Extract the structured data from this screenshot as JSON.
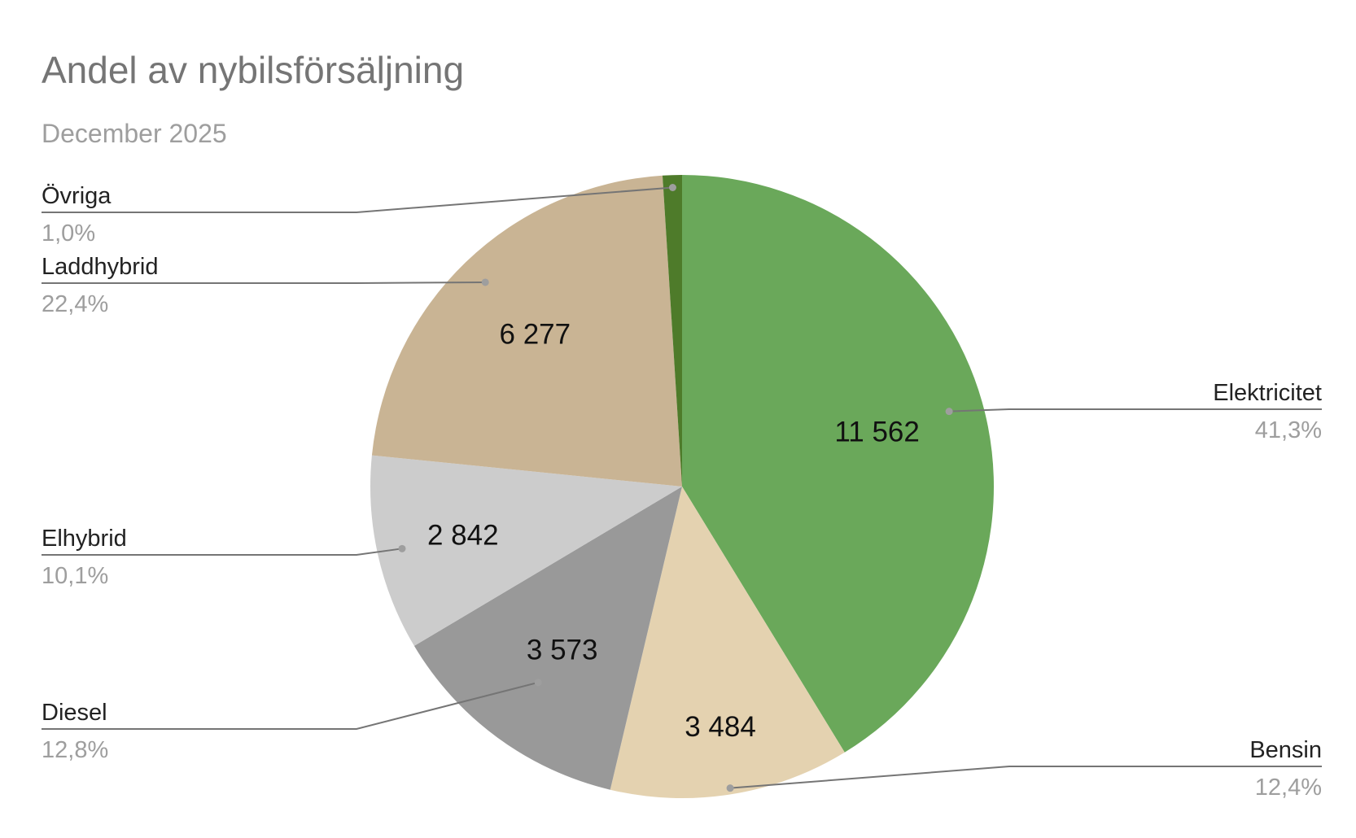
{
  "chart_data": {
    "type": "pie",
    "title": "Andel av nybilsförsäljning",
    "subtitle": "December 2025",
    "slices": [
      {
        "name": "Elektricitet",
        "value": 11562,
        "label": "11 562",
        "percent": "41,3%",
        "color": "#6aa85a"
      },
      {
        "name": "Bensin",
        "value": 3484,
        "label": "3 484",
        "percent": "12,4%",
        "color": "#e4d2b0"
      },
      {
        "name": "Diesel",
        "value": 3573,
        "label": "3 573",
        "percent": "12,8%",
        "color": "#999999"
      },
      {
        "name": "Elhybrid",
        "value": 2842,
        "label": "2 842",
        "percent": "10,1%",
        "color": "#cccccc"
      },
      {
        "name": "Laddhybrid",
        "value": 6277,
        "label": "6 277",
        "percent": "22,4%",
        "color": "#c9b494"
      },
      {
        "name": "Övriga",
        "value": 280,
        "label": "",
        "percent": "1,0%",
        "color": "#4e7b2a"
      }
    ]
  }
}
